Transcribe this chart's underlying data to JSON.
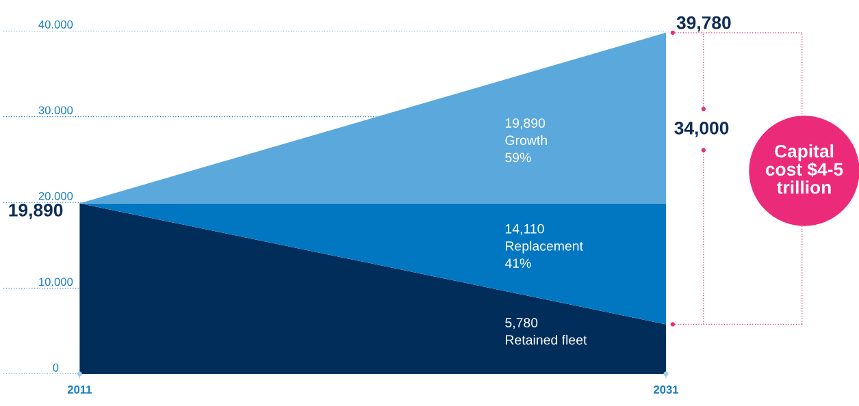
{
  "chart_data": {
    "type": "area",
    "stacked": true,
    "x": [
      2011,
      2031
    ],
    "xlim": [
      2008.4,
      2031
    ],
    "xticks": [
      2011,
      2031
    ],
    "ylim": [
      0,
      40000
    ],
    "yticks": [
      {
        "value": 0,
        "label": "0"
      },
      {
        "value": 10000,
        "label": "10.000"
      },
      {
        "value": 20000,
        "label": "20.000"
      },
      {
        "value": 30000,
        "label": "30.000"
      },
      {
        "value": 40000,
        "label": "40.000"
      }
    ],
    "grid": "y",
    "legend": false,
    "series": [
      {
        "name": "Retained fleet",
        "color": "#002d5a",
        "values": [
          19890,
          5780
        ]
      },
      {
        "name": "Replacement",
        "color": "#0077c0",
        "values": [
          0,
          14110
        ]
      },
      {
        "name": "Growth",
        "color": "#5ba8dc",
        "values": [
          0,
          19890
        ]
      }
    ],
    "annotations": [
      "19,890",
      "19,890",
      "59%",
      "14,110",
      "41%",
      "5,780",
      "39,780",
      "34,000",
      "Capital\ncost $4-5\ntrillion"
    ]
  }
}
